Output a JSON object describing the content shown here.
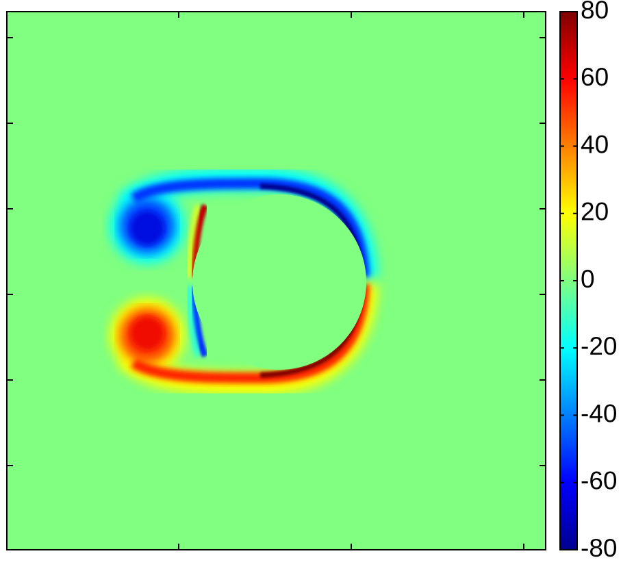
{
  "chart_data": {
    "type": "heatmap",
    "colormap": "jet",
    "background_value": 0,
    "colorbar": {
      "lim": [
        -80,
        80
      ],
      "ticks": [
        -80,
        -60,
        -40,
        -20,
        0,
        20,
        40,
        60,
        80
      ]
    }
  }
}
